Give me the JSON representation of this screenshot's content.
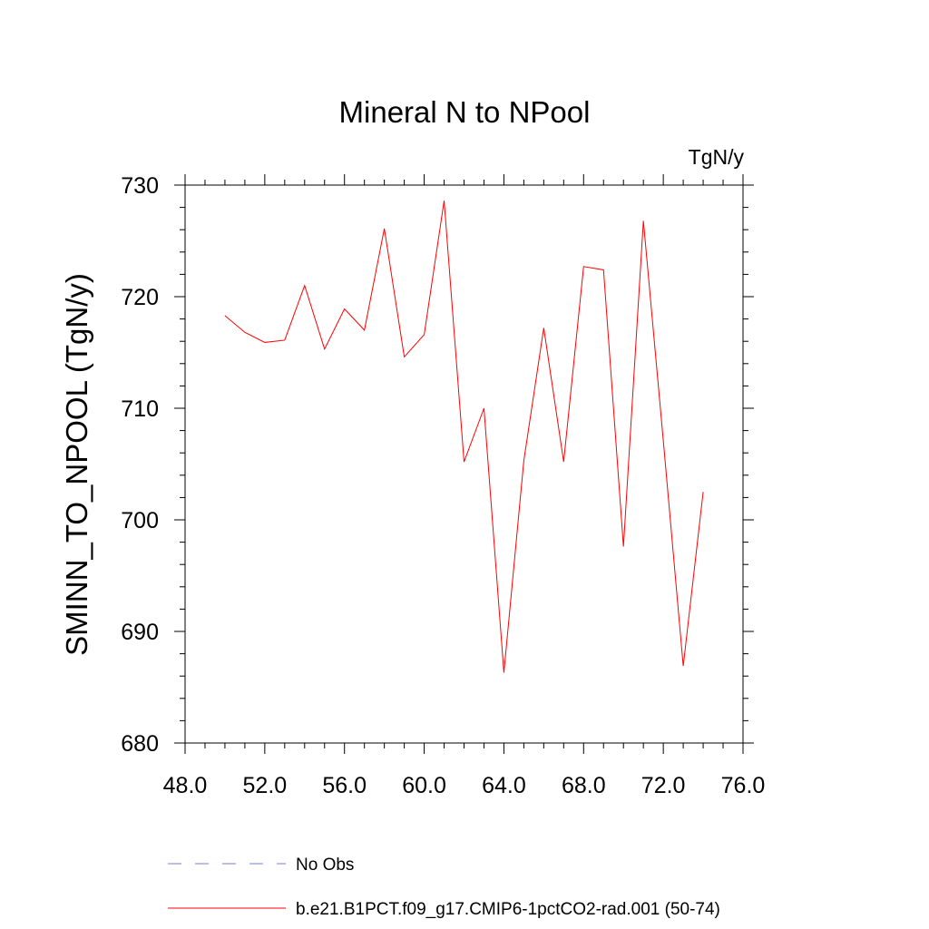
{
  "chart_data": {
    "type": "line",
    "title": "Mineral N to NPool",
    "units_label": "TgN/y",
    "ylabel": "SMINN_TO_NPOOL  (TgN/y)",
    "xlabel": "",
    "xlim": [
      48,
      76
    ],
    "ylim": [
      680,
      730
    ],
    "x_ticks": [
      48,
      52,
      56,
      60,
      64,
      68,
      72,
      76
    ],
    "x_tick_labels": [
      "48.0",
      "52.0",
      "56.0",
      "60.0",
      "64.0",
      "68.0",
      "72.0",
      "76.0"
    ],
    "y_ticks": [
      680,
      690,
      700,
      710,
      720,
      730
    ],
    "y_tick_labels": [
      "680",
      "690",
      "700",
      "710",
      "720",
      "730"
    ],
    "grid": false,
    "series": [
      {
        "name": "b.e21.B1PCT.f09_g17.CMIP6-1pctCO2-rad.001 (50-74)",
        "color": "#ff0000",
        "style": "solid",
        "x": [
          50,
          51,
          52,
          53,
          54,
          55,
          56,
          57,
          58,
          59,
          60,
          61,
          62,
          63,
          64,
          65,
          66,
          67,
          68,
          69,
          70,
          71,
          72,
          73,
          74
        ],
        "y": [
          718.3,
          716.8,
          715.9,
          716.1,
          721.0,
          715.3,
          718.9,
          717.0,
          726.1,
          714.6,
          716.6,
          728.6,
          705.2,
          710.0,
          686.3,
          705.3,
          717.2,
          705.2,
          722.7,
          722.4,
          697.6,
          726.8,
          707.1,
          686.9,
          702.5
        ]
      }
    ],
    "legend": {
      "placement": "bottom",
      "entries": [
        {
          "label": "No Obs",
          "color": "#7b7bdc",
          "style": "dashed"
        },
        {
          "label": "b.e21.B1PCT.f09_g17.CMIP6-1pctCO2-rad.001 (50-74)",
          "color": "#ff0000",
          "style": "solid"
        }
      ]
    }
  }
}
